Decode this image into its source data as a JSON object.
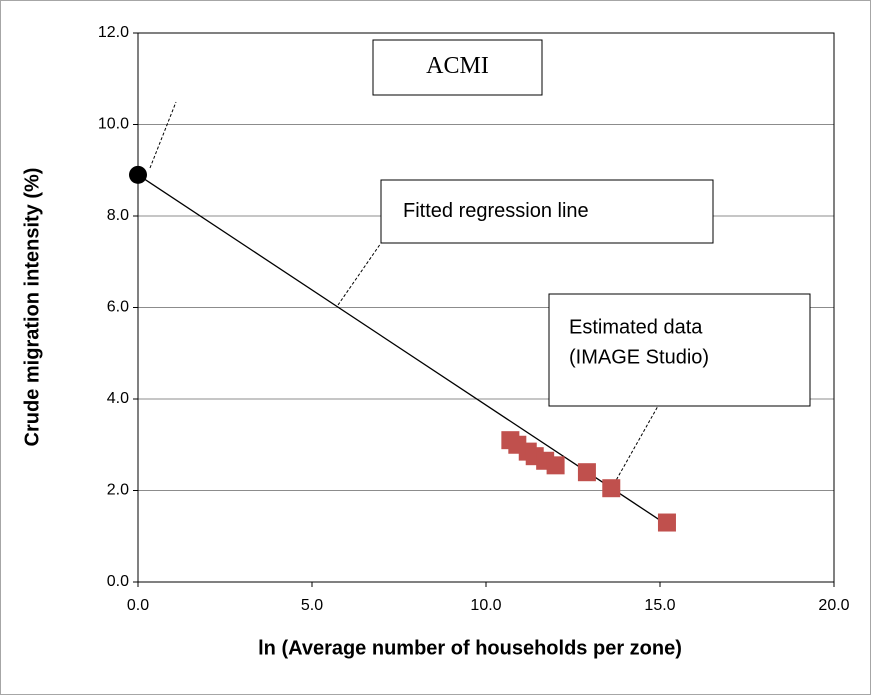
{
  "chart_data": {
    "type": "scatter",
    "xlabel": "ln (Average number of households per zone)",
    "ylabel": "Crude migration intensity (%)",
    "xlim": [
      0,
      20
    ],
    "ylim": [
      0,
      12
    ],
    "xticks": [
      {
        "value": 0,
        "label": "0.0"
      },
      {
        "value": 5,
        "label": "5.0"
      },
      {
        "value": 10,
        "label": "10.0"
      },
      {
        "value": 15,
        "label": "15.0"
      },
      {
        "value": 20,
        "label": "20.0"
      }
    ],
    "yticks": [
      {
        "value": 0,
        "label": "0.0"
      },
      {
        "value": 2,
        "label": "2.0"
      },
      {
        "value": 4,
        "label": "4.0"
      },
      {
        "value": 6,
        "label": "6.0"
      },
      {
        "value": 8,
        "label": "8.0"
      },
      {
        "value": 10,
        "label": "10.0"
      },
      {
        "value": 12,
        "label": "12.0"
      }
    ],
    "grid": true,
    "series": [
      {
        "color": "#000000",
        "style": "line",
        "x": [
          0,
          15.2
        ],
        "values": [
          8.9,
          1.25
        ]
      },
      {
        "color": "#c0504d",
        "marker": "square",
        "x": [
          10.7,
          10.9,
          11.2,
          11.4,
          11.7,
          12.0,
          12.9,
          13.6,
          15.2
        ],
        "values": [
          3.1,
          3.0,
          2.85,
          2.75,
          2.65,
          2.55,
          2.4,
          2.05,
          1.3
        ]
      },
      {
        "color": "#000000",
        "marker": "circle",
        "x": [
          0
        ],
        "values": [
          8.9
        ]
      }
    ],
    "annotations": [
      {
        "text": "ACMI"
      },
      {
        "text": "Fitted regression line"
      },
      {
        "lines": [
          "Estimated data",
          "(IMAGE Studio)"
        ]
      }
    ]
  }
}
